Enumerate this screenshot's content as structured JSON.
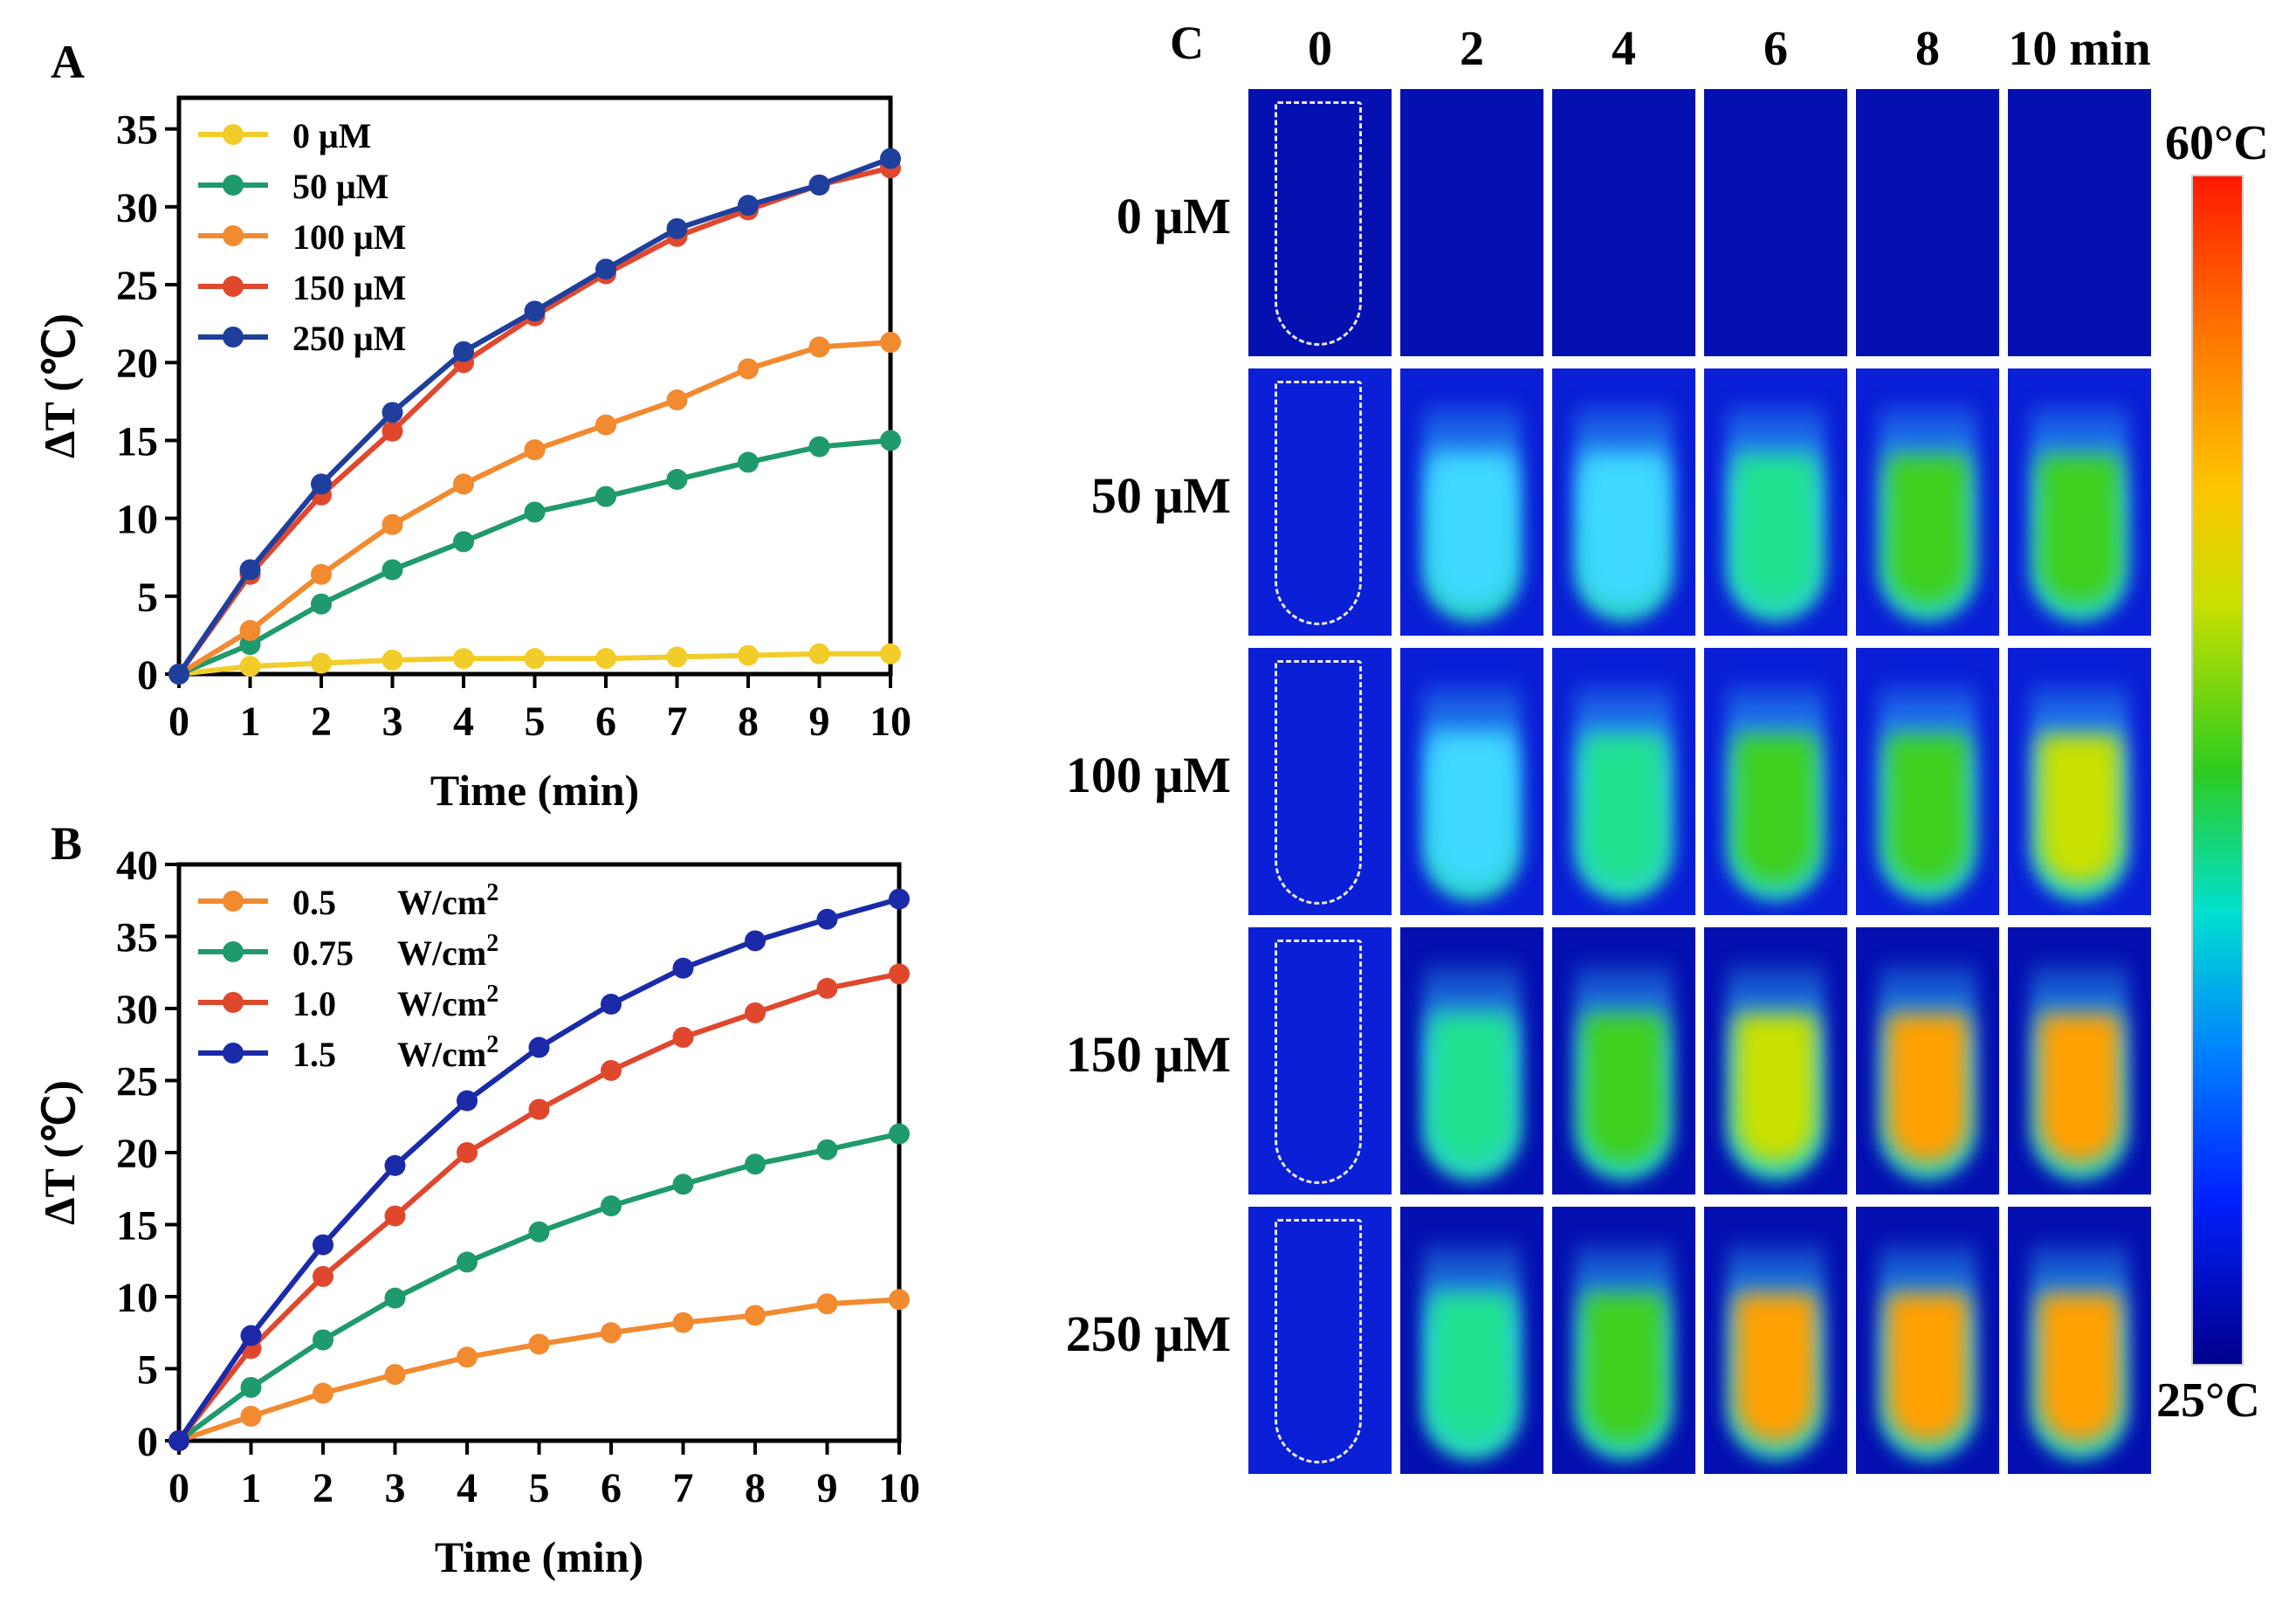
{
  "panels": {
    "a": "A",
    "b": "B",
    "c": "C"
  },
  "chart_data": [
    {
      "id": "A",
      "type": "line",
      "xlabel": "Time (min)",
      "ylabel": "ΔT (℃)",
      "x": [
        0,
        1,
        2,
        3,
        4,
        5,
        6,
        7,
        8,
        9,
        10
      ],
      "xlim": [
        0,
        10
      ],
      "ylim": [
        0,
        37
      ],
      "yticks": [
        0,
        5,
        10,
        15,
        20,
        25,
        30,
        35
      ],
      "legend_position": "top-left",
      "series": [
        {
          "name": "0 μM",
          "color": "#f2cd2a",
          "values": [
            0,
            0.5,
            0.7,
            0.9,
            1.0,
            1.0,
            1.0,
            1.1,
            1.2,
            1.3,
            1.3
          ]
        },
        {
          "name": "50 μM",
          "color": "#1f9a6c",
          "values": [
            0,
            1.9,
            4.5,
            6.7,
            8.5,
            10.4,
            11.4,
            12.5,
            13.6,
            14.6,
            15.0
          ]
        },
        {
          "name": "100 μM",
          "color": "#f28a30",
          "values": [
            0,
            2.8,
            6.4,
            9.6,
            12.2,
            14.4,
            16.0,
            17.6,
            19.6,
            21.0,
            21.3
          ]
        },
        {
          "name": "150 μM",
          "color": "#e0482e",
          "values": [
            0,
            6.4,
            11.5,
            15.6,
            20.0,
            23.0,
            25.7,
            28.1,
            29.8,
            31.4,
            32.5
          ]
        },
        {
          "name": "250 μM",
          "color": "#1f3f9c",
          "values": [
            0,
            6.7,
            12.2,
            16.8,
            20.7,
            23.3,
            26.0,
            28.6,
            30.1,
            31.4,
            33.1
          ]
        }
      ]
    },
    {
      "id": "B",
      "type": "line",
      "xlabel": "Time (min)",
      "ylabel": "ΔT (℃)",
      "x": [
        0,
        1,
        2,
        3,
        4,
        5,
        6,
        7,
        8,
        9,
        10
      ],
      "xlim": [
        0,
        10
      ],
      "ylim": [
        0,
        40
      ],
      "yticks": [
        0,
        5,
        10,
        15,
        20,
        25,
        30,
        35,
        40
      ],
      "legend_position": "top-left",
      "series": [
        {
          "name": "0.5",
          "unit": "W/cm",
          "sup": "2",
          "color": "#f28a30",
          "values": [
            0,
            1.7,
            3.3,
            4.6,
            5.8,
            6.7,
            7.5,
            8.2,
            8.7,
            9.5,
            9.8
          ]
        },
        {
          "name": "0.75",
          "unit": "W/cm",
          "sup": "2",
          "color": "#1f9a6c",
          "values": [
            0,
            3.7,
            7.0,
            9.9,
            12.4,
            14.5,
            16.3,
            17.8,
            19.2,
            20.2,
            21.3
          ]
        },
        {
          "name": "1.0",
          "unit": "W/cm",
          "sup": "2",
          "color": "#e0482e",
          "values": [
            0,
            6.4,
            11.4,
            15.6,
            20.0,
            23.0,
            25.7,
            28.0,
            29.7,
            31.4,
            32.4
          ]
        },
        {
          "name": "1.5",
          "unit": "W/cm",
          "sup": "2",
          "color": "#1a2aa8",
          "values": [
            0,
            7.3,
            13.6,
            19.1,
            23.6,
            27.3,
            30.3,
            32.8,
            34.7,
            36.2,
            37.6
          ]
        }
      ]
    }
  ],
  "thermal": {
    "columns": [
      "0",
      "2",
      "4",
      "6",
      "8",
      "10 min"
    ],
    "rows": [
      "0 μM",
      "50 μM",
      "100 μM",
      "150 μM",
      "250 μM"
    ],
    "colorbar_max": "60°C",
    "colorbar_min": "25°C",
    "colors": {
      "background": "#0a1fd6",
      "dark_background": "#0410b0"
    }
  }
}
